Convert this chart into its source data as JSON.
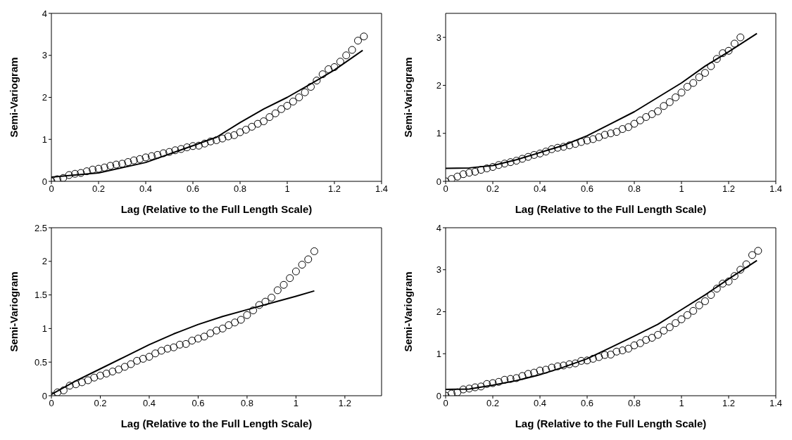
{
  "chart_data": [
    {
      "type": "scatter",
      "xlabel": "Lag (Relative to the Full Length Scale)",
      "ylabel": "Semi-Variogram",
      "xlim": [
        0,
        1.4
      ],
      "ylim": [
        0,
        4
      ],
      "xticks": [
        0,
        0.2,
        0.4,
        0.6,
        0.8,
        1,
        1.2,
        1.4
      ],
      "yticks": [
        0,
        1,
        2,
        3,
        4
      ],
      "grid": false,
      "legend": false,
      "series": [
        {
          "type": "scatter",
          "marker": "circle",
          "color": "#000000",
          "x": [
            0,
            0.025,
            0.05,
            0.075,
            0.1,
            0.125,
            0.15,
            0.175,
            0.2,
            0.225,
            0.25,
            0.275,
            0.3,
            0.325,
            0.35,
            0.375,
            0.4,
            0.425,
            0.45,
            0.475,
            0.5,
            0.525,
            0.55,
            0.575,
            0.6,
            0.625,
            0.65,
            0.675,
            0.7,
            0.725,
            0.75,
            0.775,
            0.8,
            0.825,
            0.85,
            0.875,
            0.9,
            0.925,
            0.95,
            0.975,
            1,
            1.025,
            1.05,
            1.075,
            1.1,
            1.125,
            1.15,
            1.175,
            1.2,
            1.225,
            1.25,
            1.275,
            1.3,
            1.325
          ],
          "values": [
            0,
            0.05,
            0.08,
            0.15,
            0.18,
            0.2,
            0.24,
            0.28,
            0.3,
            0.33,
            0.37,
            0.4,
            0.42,
            0.46,
            0.5,
            0.53,
            0.57,
            0.6,
            0.63,
            0.67,
            0.7,
            0.74,
            0.77,
            0.81,
            0.84,
            0.85,
            0.9,
            0.95,
            0.98,
            1.02,
            1.07,
            1.1,
            1.17,
            1.23,
            1.3,
            1.37,
            1.43,
            1.53,
            1.62,
            1.72,
            1.8,
            1.9,
            2,
            2.12,
            2.25,
            2.4,
            2.55,
            2.67,
            2.72,
            2.85,
            3,
            3.13,
            3.35,
            3.45
          ]
        },
        {
          "type": "line",
          "line_style": "solid",
          "color": "#000000",
          "x": [
            0,
            0.2,
            0.4,
            0.6,
            0.7,
            0.8,
            0.9,
            1,
            1.1,
            1.2,
            1.32
          ],
          "values": [
            0.1,
            0.2,
            0.45,
            0.85,
            1.05,
            1.4,
            1.72,
            2,
            2.32,
            2.65,
            3.12
          ]
        }
      ]
    },
    {
      "type": "scatter",
      "xlabel": "Lag (Relative to the Full Length Scale)",
      "ylabel": "Semi-Variogram",
      "xlim": [
        0,
        1.4
      ],
      "ylim": [
        0,
        3.5
      ],
      "xticks": [
        0,
        0.2,
        0.4,
        0.6,
        0.8,
        1,
        1.2,
        1.4
      ],
      "yticks": [
        0,
        1,
        2,
        3
      ],
      "grid": false,
      "legend": false,
      "series": [
        {
          "type": "scatter",
          "marker": "circle",
          "color": "#000000",
          "x": [
            0,
            0.025,
            0.05,
            0.075,
            0.1,
            0.125,
            0.15,
            0.175,
            0.2,
            0.225,
            0.25,
            0.275,
            0.3,
            0.325,
            0.35,
            0.375,
            0.4,
            0.425,
            0.45,
            0.475,
            0.5,
            0.525,
            0.55,
            0.575,
            0.6,
            0.625,
            0.65,
            0.675,
            0.7,
            0.725,
            0.75,
            0.775,
            0.8,
            0.825,
            0.85,
            0.875,
            0.9,
            0.925,
            0.95,
            0.975,
            1,
            1.025,
            1.05,
            1.075,
            1.1,
            1.125,
            1.15,
            1.175,
            1.2,
            1.225,
            1.25
          ],
          "values": [
            0,
            0.05,
            0.1,
            0.15,
            0.18,
            0.2,
            0.24,
            0.27,
            0.3,
            0.34,
            0.37,
            0.4,
            0.43,
            0.47,
            0.51,
            0.55,
            0.58,
            0.62,
            0.67,
            0.7,
            0.72,
            0.75,
            0.78,
            0.82,
            0.85,
            0.88,
            0.92,
            0.97,
            1,
            1.03,
            1.09,
            1.13,
            1.2,
            1.27,
            1.34,
            1.4,
            1.46,
            1.57,
            1.65,
            1.75,
            1.85,
            1.97,
            2.05,
            2.17,
            2.26,
            2.4,
            2.55,
            2.67,
            2.72,
            2.87,
            3
          ]
        },
        {
          "type": "line",
          "line_style": "solid",
          "color": "#000000",
          "x": [
            0,
            0.1,
            0.2,
            0.3,
            0.4,
            0.5,
            0.6,
            0.7,
            0.8,
            0.9,
            1,
            1.1,
            1.2,
            1.32
          ],
          "values": [
            0.27,
            0.28,
            0.33,
            0.45,
            0.6,
            0.75,
            0.95,
            1.2,
            1.45,
            1.75,
            2.05,
            2.4,
            2.7,
            3.08
          ]
        }
      ]
    },
    {
      "type": "scatter",
      "xlabel": "Lag (Relative to the Full Length Scale)",
      "ylabel": "Semi-Variogram",
      "xlim": [
        0,
        1.35
      ],
      "ylim": [
        0,
        2.5
      ],
      "xticks": [
        0,
        0.2,
        0.4,
        0.6,
        0.8,
        1,
        1.2
      ],
      "yticks": [
        0,
        0.5,
        1,
        1.5,
        2,
        2.5
      ],
      "grid": false,
      "legend": false,
      "series": [
        {
          "type": "scatter",
          "marker": "circle",
          "color": "#000000",
          "x": [
            0,
            0.025,
            0.05,
            0.075,
            0.1,
            0.125,
            0.15,
            0.175,
            0.2,
            0.225,
            0.25,
            0.275,
            0.3,
            0.325,
            0.35,
            0.375,
            0.4,
            0.425,
            0.45,
            0.475,
            0.5,
            0.525,
            0.55,
            0.575,
            0.6,
            0.625,
            0.65,
            0.675,
            0.7,
            0.725,
            0.75,
            0.775,
            0.8,
            0.825,
            0.85,
            0.875,
            0.9,
            0.925,
            0.95,
            0.975,
            1,
            1.025,
            1.05,
            1.075
          ],
          "values": [
            0,
            0.05,
            0.08,
            0.15,
            0.17,
            0.2,
            0.23,
            0.27,
            0.3,
            0.33,
            0.36,
            0.39,
            0.43,
            0.47,
            0.52,
            0.55,
            0.58,
            0.63,
            0.67,
            0.7,
            0.72,
            0.76,
            0.77,
            0.82,
            0.85,
            0.88,
            0.93,
            0.97,
            1,
            1.05,
            1.09,
            1.13,
            1.2,
            1.27,
            1.35,
            1.4,
            1.46,
            1.57,
            1.65,
            1.75,
            1.85,
            1.95,
            2.03,
            2.15
          ]
        },
        {
          "type": "line",
          "line_style": "solid",
          "color": "#000000",
          "x": [
            0,
            0.1,
            0.2,
            0.3,
            0.4,
            0.5,
            0.6,
            0.7,
            0.8,
            0.9,
            1,
            1.075
          ],
          "values": [
            0.02,
            0.22,
            0.4,
            0.58,
            0.76,
            0.92,
            1.06,
            1.18,
            1.28,
            1.38,
            1.48,
            1.56
          ]
        }
      ]
    },
    {
      "type": "scatter",
      "xlabel": "Lag (Relative to the Full Length Scale)",
      "ylabel": "Semi-Variogram",
      "xlim": [
        0,
        1.4
      ],
      "ylim": [
        0,
        4
      ],
      "xticks": [
        0,
        0.2,
        0.4,
        0.6,
        0.8,
        1,
        1.2,
        1.4
      ],
      "yticks": [
        0,
        1,
        2,
        3,
        4
      ],
      "grid": false,
      "legend": false,
      "series": [
        {
          "type": "scatter",
          "marker": "circle",
          "color": "#000000",
          "x": [
            0,
            0.025,
            0.05,
            0.075,
            0.1,
            0.125,
            0.15,
            0.175,
            0.2,
            0.225,
            0.25,
            0.275,
            0.3,
            0.325,
            0.35,
            0.375,
            0.4,
            0.425,
            0.45,
            0.475,
            0.5,
            0.525,
            0.55,
            0.575,
            0.6,
            0.625,
            0.65,
            0.675,
            0.7,
            0.725,
            0.75,
            0.775,
            0.8,
            0.825,
            0.85,
            0.875,
            0.9,
            0.925,
            0.95,
            0.975,
            1,
            1.025,
            1.05,
            1.075,
            1.1,
            1.125,
            1.15,
            1.175,
            1.2,
            1.225,
            1.25,
            1.275,
            1.3,
            1.325
          ],
          "values": [
            0,
            0.05,
            0.08,
            0.15,
            0.17,
            0.2,
            0.22,
            0.28,
            0.3,
            0.33,
            0.38,
            0.4,
            0.42,
            0.47,
            0.52,
            0.55,
            0.6,
            0.62,
            0.67,
            0.7,
            0.72,
            0.75,
            0.77,
            0.83,
            0.84,
            0.88,
            0.92,
            0.97,
            0.98,
            1.05,
            1.08,
            1.12,
            1.2,
            1.25,
            1.33,
            1.38,
            1.45,
            1.55,
            1.63,
            1.73,
            1.82,
            1.92,
            2.02,
            2.15,
            2.25,
            2.4,
            2.55,
            2.67,
            2.72,
            2.85,
            3,
            3.13,
            3.35,
            3.45
          ]
        },
        {
          "type": "line",
          "line_style": "solid",
          "color": "#000000",
          "x": [
            0,
            0.1,
            0.2,
            0.3,
            0.4,
            0.5,
            0.6,
            0.7,
            0.8,
            0.9,
            1,
            1.1,
            1.2,
            1.32
          ],
          "values": [
            0.15,
            0.16,
            0.25,
            0.36,
            0.5,
            0.68,
            0.88,
            1.15,
            1.42,
            1.7,
            2.05,
            2.4,
            2.78,
            3.22
          ]
        }
      ]
    }
  ]
}
